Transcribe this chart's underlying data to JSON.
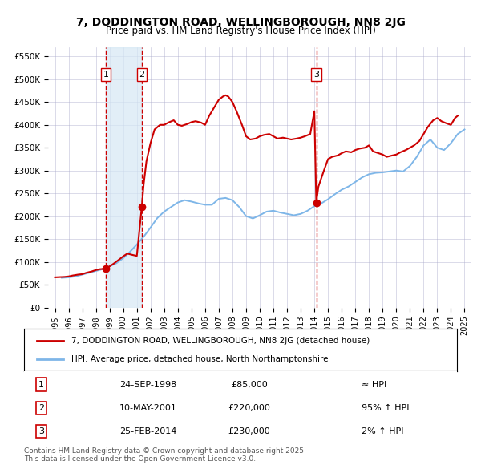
{
  "title": "7, DODDINGTON ROAD, WELLINGBOROUGH, NN8 2JG",
  "subtitle": "Price paid vs. HM Land Registry's House Price Index (HPI)",
  "legend_line1": "7, DODDINGTON ROAD, WELLINGBOROUGH, NN8 2JG (detached house)",
  "legend_line2": "HPI: Average price, detached house, North Northamptonshire",
  "transaction_labels": [
    {
      "num": 1,
      "date": "24-SEP-1998",
      "price": "£85,000",
      "note": "≈ HPI",
      "x_year": 1998.73,
      "price_val": 85000
    },
    {
      "num": 2,
      "date": "10-MAY-2001",
      "price": "£220,000",
      "note": "95% ↑ HPI",
      "x_year": 2001.36,
      "price_val": 220000
    },
    {
      "num": 3,
      "date": "25-FEB-2014",
      "price": "£230,000",
      "note": "2% ↑ HPI",
      "x_year": 2014.14,
      "price_val": 230000
    }
  ],
  "footnote_line1": "Contains HM Land Registry data © Crown copyright and database right 2025.",
  "footnote_line2": "This data is licensed under the Open Government Licence v3.0.",
  "hpi_color": "#7EB6E8",
  "price_color": "#CC0000",
  "marker_color": "#CC0000",
  "vline_color": "#CC0000",
  "shade_color": "#D6E8F5",
  "grid_color": "#AAAACC",
  "background_color": "#FFFFFF",
  "plot_bg_color": "#FFFFFF",
  "ylim": [
    0,
    570000
  ],
  "yticks": [
    0,
    50000,
    100000,
    150000,
    200000,
    250000,
    300000,
    350000,
    400000,
    450000,
    500000,
    550000
  ],
  "xlim_start": 1994.5,
  "xlim_end": 2025.5,
  "xticks": [
    1995,
    1996,
    1997,
    1998,
    1999,
    2000,
    2001,
    2002,
    2003,
    2004,
    2005,
    2006,
    2007,
    2008,
    2009,
    2010,
    2011,
    2012,
    2013,
    2014,
    2015,
    2016,
    2017,
    2018,
    2019,
    2020,
    2021,
    2022,
    2023,
    2024,
    2025
  ],
  "hpi_data": {
    "years": [
      1995.5,
      1996.0,
      1996.5,
      1997.0,
      1997.5,
      1998.0,
      1998.5,
      1999.0,
      1999.5,
      2000.0,
      2000.5,
      2001.0,
      2001.5,
      2002.0,
      2002.5,
      2003.0,
      2003.5,
      2004.0,
      2004.5,
      2005.0,
      2005.5,
      2006.0,
      2006.5,
      2007.0,
      2007.5,
      2008.0,
      2008.5,
      2009.0,
      2009.5,
      2010.0,
      2010.5,
      2011.0,
      2011.5,
      2012.0,
      2012.5,
      2013.0,
      2013.5,
      2014.0,
      2014.5,
      2015.0,
      2015.5,
      2016.0,
      2016.5,
      2017.0,
      2017.5,
      2018.0,
      2018.5,
      2019.0,
      2019.5,
      2020.0,
      2020.5,
      2021.0,
      2021.5,
      2022.0,
      2022.5,
      2023.0,
      2023.5,
      2024.0,
      2024.5,
      2025.0
    ],
    "values": [
      65000,
      66000,
      68000,
      72000,
      76000,
      80000,
      84000,
      90000,
      97000,
      108000,
      122000,
      138000,
      155000,
      175000,
      196000,
      210000,
      220000,
      230000,
      235000,
      232000,
      228000,
      225000,
      225000,
      238000,
      240000,
      235000,
      220000,
      200000,
      195000,
      202000,
      210000,
      212000,
      208000,
      205000,
      202000,
      205000,
      212000,
      222000,
      228000,
      237000,
      248000,
      258000,
      265000,
      275000,
      285000,
      292000,
      295000,
      296000,
      298000,
      300000,
      298000,
      310000,
      330000,
      355000,
      368000,
      350000,
      345000,
      360000,
      380000,
      390000
    ]
  },
  "price_data": {
    "years": [
      1995.0,
      1995.3,
      1995.7,
      1996.0,
      1996.3,
      1996.7,
      1997.0,
      1997.3,
      1997.7,
      1998.0,
      1998.3,
      1998.73,
      1998.8,
      1999.0,
      1999.3,
      1999.7,
      2000.0,
      2000.3,
      2000.7,
      2001.0,
      2001.36,
      2001.36,
      2001.5,
      2001.7,
      2002.0,
      2002.3,
      2002.7,
      2003.0,
      2003.3,
      2003.7,
      2004.0,
      2004.3,
      2004.7,
      2005.0,
      2005.3,
      2005.7,
      2006.0,
      2006.3,
      2006.7,
      2007.0,
      2007.3,
      2007.5,
      2007.7,
      2008.0,
      2008.3,
      2008.7,
      2009.0,
      2009.3,
      2009.7,
      2010.0,
      2010.3,
      2010.7,
      2011.0,
      2011.3,
      2011.7,
      2012.0,
      2012.3,
      2012.7,
      2013.0,
      2013.3,
      2013.7,
      2014.0,
      2014.14,
      2014.14,
      2014.3,
      2014.7,
      2015.0,
      2015.3,
      2015.7,
      2016.0,
      2016.3,
      2016.7,
      2017.0,
      2017.3,
      2017.7,
      2018.0,
      2018.3,
      2018.7,
      2019.0,
      2019.3,
      2019.7,
      2020.0,
      2020.3,
      2020.7,
      2021.0,
      2021.3,
      2021.7,
      2022.0,
      2022.3,
      2022.7,
      2023.0,
      2023.3,
      2023.7,
      2024.0,
      2024.3,
      2024.5
    ],
    "values": [
      66000,
      66500,
      67000,
      68000,
      70000,
      72000,
      73000,
      76000,
      79000,
      82000,
      84000,
      85000,
      86000,
      90000,
      96000,
      105000,
      112000,
      118000,
      115000,
      113000,
      220000,
      220000,
      270000,
      320000,
      360000,
      390000,
      400000,
      400000,
      405000,
      410000,
      400000,
      398000,
      402000,
      406000,
      408000,
      405000,
      400000,
      420000,
      440000,
      455000,
      462000,
      465000,
      462000,
      450000,
      430000,
      400000,
      375000,
      368000,
      370000,
      375000,
      378000,
      380000,
      375000,
      370000,
      372000,
      370000,
      368000,
      370000,
      372000,
      375000,
      380000,
      430000,
      230000,
      230000,
      265000,
      300000,
      325000,
      330000,
      333000,
      338000,
      342000,
      340000,
      345000,
      348000,
      350000,
      355000,
      342000,
      338000,
      335000,
      330000,
      333000,
      335000,
      340000,
      345000,
      350000,
      355000,
      365000,
      380000,
      395000,
      410000,
      415000,
      408000,
      403000,
      400000,
      415000,
      420000
    ]
  }
}
